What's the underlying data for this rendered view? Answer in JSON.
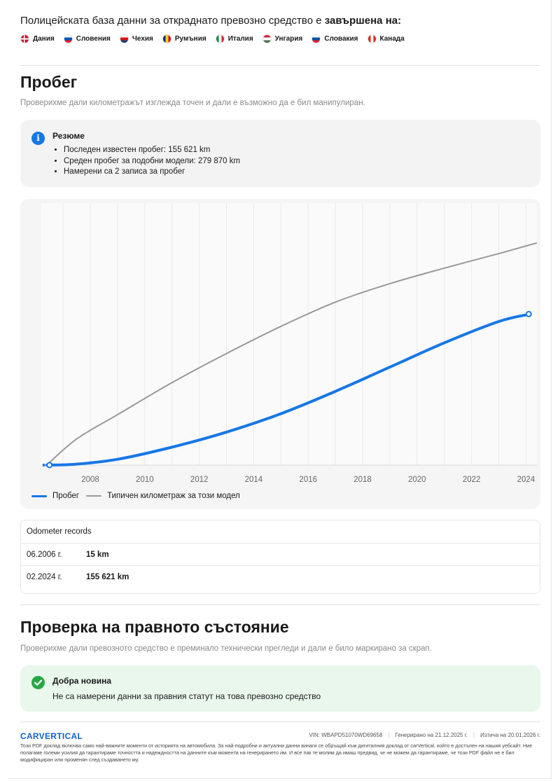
{
  "police": {
    "title_prefix": "Полицейската база данни за откраднато превозно средство е ",
    "title_bold": "завършена на:",
    "countries": [
      {
        "name": "Дания",
        "flag": "denmark-flag",
        "colors": [
          "#c8102e",
          "#ffffff"
        ]
      },
      {
        "name": "Словения",
        "flag": "slovenia-flag",
        "colors": [
          "#ffffff",
          "#0057b8",
          "#ed1c24"
        ]
      },
      {
        "name": "Чехия",
        "flag": "czechia-flag",
        "colors": [
          "#ffffff",
          "#d7141a",
          "#11457e"
        ]
      },
      {
        "name": "Румъния",
        "flag": "romania-flag",
        "colors": [
          "#002b7f",
          "#fcd116",
          "#ce1126"
        ]
      },
      {
        "name": "Италия",
        "flag": "italy-flag",
        "colors": [
          "#009246",
          "#ffffff",
          "#ce2b37"
        ]
      },
      {
        "name": "Унгария",
        "flag": "hungary-flag",
        "colors": [
          "#ce2939",
          "#ffffff",
          "#477050"
        ]
      },
      {
        "name": "Словакия",
        "flag": "slovakia-flag",
        "colors": [
          "#ffffff",
          "#0b4ea2",
          "#ee1c25"
        ]
      },
      {
        "name": "Канада",
        "flag": "canada-flag",
        "colors": [
          "#d52b1e",
          "#ffffff",
          "#d52b1e"
        ]
      }
    ]
  },
  "mileage": {
    "title": "Пробег",
    "subtitle": "Проверихме дали километражът изглежда точен и дали е възможно да е бил манипулиран.",
    "summary_title": "Резюме",
    "summary_items": [
      "Последен известен пробег: 155 621 km",
      "Среден пробег за подобни модели: 279 870 km",
      "Намерени са 2 записа за пробег"
    ]
  },
  "chart_data": {
    "type": "line",
    "x_ticks": [
      "2008",
      "2010",
      "2012",
      "2014",
      "2016",
      "2018",
      "2020",
      "2022",
      "2024"
    ],
    "xlim": [
      2006.2,
      2024.4
    ],
    "ylim": [
      0,
      270000
    ],
    "grid": "vertical",
    "legend_position": "bottom-left",
    "series": [
      {
        "name": "Пробег",
        "color": "#1677e6",
        "x": [
          2006.4,
          2007.5,
          2009,
          2011,
          2013,
          2015,
          2017,
          2019,
          2021,
          2023,
          2024.15
        ],
        "y": [
          15,
          1000,
          6000,
          18500,
          34000,
          53000,
          76000,
          101000,
          126000,
          148000,
          155621
        ],
        "markers_x": [
          2006.5,
          2024.1
        ]
      },
      {
        "name": "Типичен километраж за този модел",
        "color": "#999999",
        "x": [
          2006.4,
          2007.5,
          2009,
          2011,
          2013,
          2015,
          2017,
          2019,
          2021,
          2023,
          2024.4
        ],
        "y": [
          0,
          27000,
          52000,
          85000,
          115000,
          143000,
          168000,
          187000,
          203000,
          218000,
          229000
        ]
      }
    ]
  },
  "records": {
    "title": "Odometer records",
    "rows": [
      {
        "date": "06.2006 г.",
        "value": "15 km"
      },
      {
        "date": "02.2024 г.",
        "value": "155 621 km"
      }
    ]
  },
  "legal": {
    "title": "Проверка на правното състояние",
    "subtitle": "Проверихме дали превозното средство е преминало технически прегледи и дали е било маркирано за скрап.",
    "good_title": "Добра новина",
    "good_text": "Не са намерени данни за правния статут на това превозно средство"
  },
  "footer": {
    "logo": "CARVERTICAL",
    "vin": "VIN:  WBAPD51070WD69658",
    "generated": "Генерирано на  21.12.2025 г.",
    "expires": "Изтича на  20.01.2026 г.",
    "disclaimer": "Този PDF доклад включва само най-важните моменти от историята на автомобила. За най-подробни и актуални данни винаги се обръщай към дигиталния доклад от carVertical, който е достъпен на нашия уебсайт. Ние полагаме големи усилия да гарантираме точността и надеждността на данните към момента на генерирането им. И все пак те молим да имаш предвид, че не можем да гарантираме, че този PDF файл не е бил модифициран или променян след създаването му."
  }
}
